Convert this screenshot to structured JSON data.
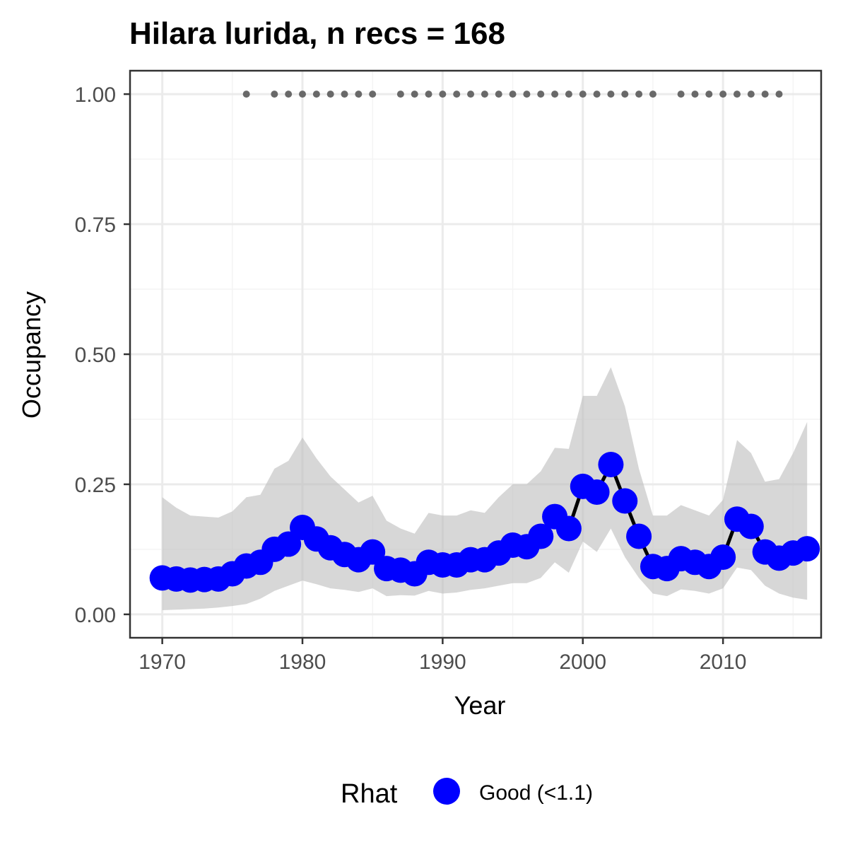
{
  "chart_data": {
    "type": "line",
    "title": "Hilara lurida, n recs = 168",
    "xlabel": "Year",
    "ylabel": "Occupancy",
    "xlim": [
      1968.2,
      1970.0
    ],
    "x_range": [
      1967.7,
      2017.0
    ],
    "ylim": [
      -0.045,
      1.045
    ],
    "x_ticks": [
      1970,
      1980,
      1990,
      2000,
      2010
    ],
    "x_tick_labels": [
      "1970",
      "1980",
      "1990",
      "2000",
      "2010"
    ],
    "y_ticks": [
      0,
      0.25,
      0.5,
      0.75,
      1.0
    ],
    "y_tick_labels": [
      "0.00",
      "0.25",
      "0.50",
      "0.75",
      "1.00"
    ],
    "grid": true,
    "colors": {
      "point": "#0000ff",
      "line": "#000000",
      "ribbon": "#bebebe",
      "record_dots": "#696969",
      "panel_border": "#333333",
      "grid_major": "#ebebeb",
      "grid_minor": "#f4f4f4"
    },
    "legend": {
      "position": "bottom",
      "title": "Rhat",
      "entries": [
        {
          "label": "Good (<1.1)",
          "color": "#0000ff"
        }
      ]
    },
    "series": [
      {
        "name": "Occupancy",
        "x": [
          1970,
          1971,
          1972,
          1973,
          1974,
          1975,
          1976,
          1977,
          1978,
          1979,
          1980,
          1981,
          1982,
          1983,
          1984,
          1985,
          1986,
          1987,
          1988,
          1989,
          1990,
          1991,
          1992,
          1993,
          1994,
          1995,
          1996,
          1997,
          1998,
          1999,
          2000,
          2001,
          2002,
          2003,
          2004,
          2005,
          2006,
          2007,
          2008,
          2009,
          2010,
          2011,
          2012,
          2013,
          2014,
          2015,
          2016
        ],
        "y": [
          0.07,
          0.068,
          0.066,
          0.067,
          0.068,
          0.078,
          0.093,
          0.1,
          0.125,
          0.135,
          0.167,
          0.145,
          0.128,
          0.115,
          0.105,
          0.12,
          0.088,
          0.085,
          0.078,
          0.1,
          0.095,
          0.095,
          0.105,
          0.105,
          0.118,
          0.133,
          0.13,
          0.15,
          0.188,
          0.165,
          0.246,
          0.235,
          0.288,
          0.218,
          0.15,
          0.092,
          0.088,
          0.107,
          0.1,
          0.092,
          0.11,
          0.183,
          0.169,
          0.12,
          0.108,
          0.118,
          0.126
        ],
        "lower": [
          0.008,
          0.009,
          0.01,
          0.011,
          0.013,
          0.016,
          0.02,
          0.03,
          0.045,
          0.055,
          0.065,
          0.058,
          0.05,
          0.047,
          0.043,
          0.05,
          0.035,
          0.037,
          0.036,
          0.045,
          0.04,
          0.042,
          0.047,
          0.05,
          0.055,
          0.06,
          0.06,
          0.07,
          0.1,
          0.08,
          0.14,
          0.12,
          0.165,
          0.11,
          0.07,
          0.04,
          0.035,
          0.048,
          0.045,
          0.04,
          0.05,
          0.09,
          0.085,
          0.055,
          0.04,
          0.032,
          0.028
        ],
        "upper": [
          0.225,
          0.205,
          0.19,
          0.188,
          0.186,
          0.198,
          0.225,
          0.23,
          0.28,
          0.295,
          0.34,
          0.3,
          0.265,
          0.24,
          0.215,
          0.228,
          0.18,
          0.165,
          0.155,
          0.195,
          0.19,
          0.19,
          0.2,
          0.195,
          0.225,
          0.25,
          0.25,
          0.275,
          0.32,
          0.318,
          0.42,
          0.42,
          0.475,
          0.4,
          0.28,
          0.19,
          0.19,
          0.21,
          0.2,
          0.19,
          0.22,
          0.335,
          0.31,
          0.255,
          0.26,
          0.31,
          0.37
        ]
      },
      {
        "name": "Records",
        "y_value": 1.0,
        "x": [
          1976,
          1978,
          1979,
          1980,
          1981,
          1982,
          1983,
          1984,
          1985,
          1987,
          1988,
          1989,
          1990,
          1991,
          1992,
          1993,
          1994,
          1995,
          1996,
          1997,
          1998,
          1999,
          2000,
          2001,
          2002,
          2003,
          2004,
          2005,
          2007,
          2008,
          2009,
          2010,
          2011,
          2012,
          2013,
          2014
        ]
      }
    ]
  }
}
